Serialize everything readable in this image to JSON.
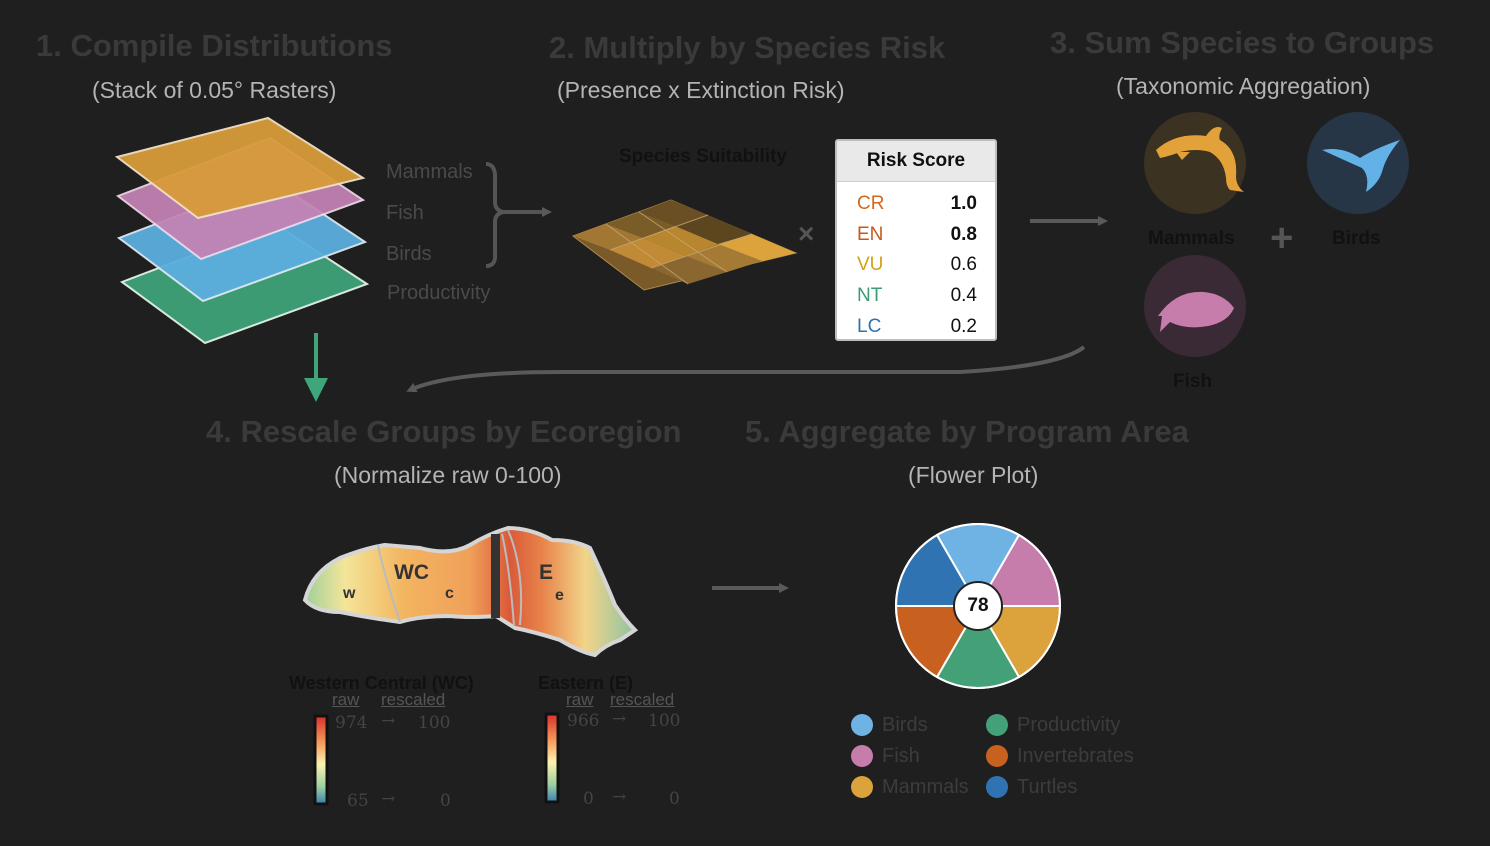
{
  "steps": {
    "s1": {
      "title": "1. Compile Distributions",
      "subtitle": "(Stack of 0.05° Rasters)"
    },
    "s2": {
      "title": "2. Multiply by Species Risk",
      "subtitle": "(Presence x Extinction Risk)"
    },
    "s3": {
      "title": "3. Sum Species to Groups",
      "subtitle": "(Taxonomic Aggregation)"
    },
    "s4": {
      "title": "4. Rescale Groups by Ecoregion",
      "subtitle": "(Normalize raw 0-100)"
    },
    "s5": {
      "title": "5. Aggregate by Program Area",
      "subtitle": "(Flower Plot)"
    }
  },
  "layers": [
    "Mammals",
    "Fish",
    "Birds",
    "Productivity"
  ],
  "suitability_label": "Species Suitability",
  "multiply_symbol": "×",
  "plus_symbol": "+",
  "risk_table": {
    "header": "Risk Score",
    "rows": [
      {
        "cat": "CR",
        "val": "1.0",
        "color": "#d2691e"
      },
      {
        "cat": "EN",
        "val": "0.8",
        "color": "#c8581a"
      },
      {
        "cat": "VU",
        "val": "0.6",
        "color": "#d4a017"
      },
      {
        "cat": "NT",
        "val": "0.4",
        "color": "#3a9c74"
      },
      {
        "cat": "LC",
        "val": "0.2",
        "color": "#3070b0"
      }
    ]
  },
  "groups": {
    "mammals": "Mammals",
    "birds": "Birds",
    "fish": "Fish"
  },
  "map_labels": {
    "wc": "WC",
    "e": "E",
    "w": "w",
    "c": "c",
    "e_small": "e"
  },
  "scales": [
    {
      "title": "Western Central (WC)",
      "raw_label": "raw",
      "rescaled_label": "rescaled",
      "raw_max": "974",
      "res_max": "100",
      "raw_min": "65",
      "res_min": "0",
      "arrow": "→"
    },
    {
      "title": "Eastern (E)",
      "raw_label": "raw",
      "rescaled_label": "rescaled",
      "raw_max": "966",
      "res_max": "100",
      "raw_min": "0",
      "res_min": "0",
      "arrow": "→"
    }
  ],
  "flower": {
    "center_value": "78",
    "petals": [
      {
        "name": "Birds",
        "color": "#6fb3e4"
      },
      {
        "name": "Fish",
        "color": "#c77dac"
      },
      {
        "name": "Mammals",
        "color": "#dca23c"
      },
      {
        "name": "Productivity",
        "color": "#44a077"
      },
      {
        "name": "Invertebrates",
        "color": "#c8601f"
      },
      {
        "name": "Turtles",
        "color": "#3073b3"
      }
    ]
  },
  "legend": [
    {
      "label": "Birds",
      "color": "#6fb3e4"
    },
    {
      "label": "Productivity",
      "color": "#44a077"
    },
    {
      "label": "Fish",
      "color": "#c77dac"
    },
    {
      "label": "Invertebrates",
      "color": "#c8601f"
    },
    {
      "label": "Mammals",
      "color": "#dca23c"
    },
    {
      "label": "Turtles",
      "color": "#3073b3"
    }
  ]
}
